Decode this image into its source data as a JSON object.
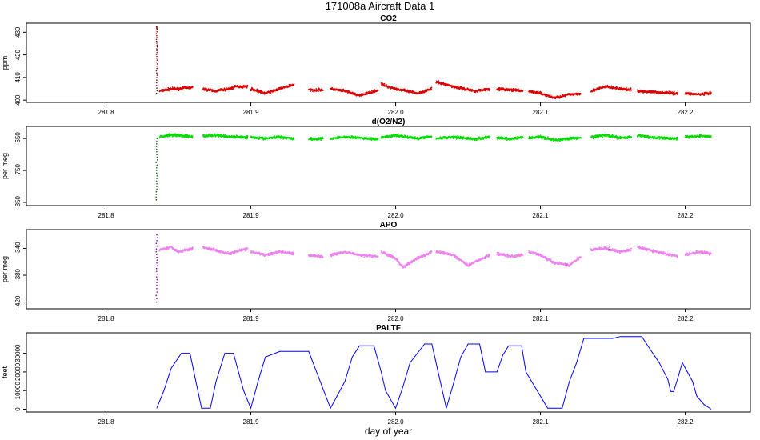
{
  "title": "171008a   Aircraft Data 1",
  "chart_data": [
    {
      "type": "scatter",
      "title": "CO2",
      "ylabel": "ppm",
      "xlabel": "",
      "xlim": [
        281.745,
        282.245
      ],
      "ylim": [
        399,
        434
      ],
      "x_ticks": [
        281.8,
        281.9,
        282.0,
        282.1,
        282.2
      ],
      "x_tick_labels": [
        "281.8",
        "281.9",
        "282.0",
        "282.1",
        "282.2"
      ],
      "y_ticks": [
        400,
        410,
        420,
        430
      ],
      "y_tick_labels": [
        "400",
        "410",
        "420",
        "430"
      ],
      "colors": [
        "#dd0000",
        "#990000"
      ],
      "spike": {
        "x": 281.835,
        "y_values": [
          403,
          410,
          416,
          421,
          426,
          431,
          433
        ]
      },
      "series": [
        {
          "x": [
            281.837,
            281.845,
            281.85,
            281.855,
            281.86
          ],
          "values": [
            404,
            405,
            405,
            405.5,
            405.5
          ]
        },
        {
          "x": [
            281.867,
            281.875,
            281.885,
            281.89,
            281.898
          ],
          "values": [
            405,
            404,
            405,
            406,
            406
          ]
        },
        {
          "x": [
            281.9,
            281.91,
            281.92,
            281.93
          ],
          "values": [
            405,
            403,
            405,
            407
          ]
        },
        {
          "x": [
            281.94,
            281.95
          ],
          "values": [
            404.5,
            404.5
          ]
        },
        {
          "x": [
            281.955,
            281.965,
            281.975,
            281.988
          ],
          "values": [
            405,
            404,
            402,
            404.5
          ]
        },
        {
          "x": [
            281.99,
            282.0,
            282.015,
            282.025
          ],
          "values": [
            407,
            405,
            403,
            405
          ]
        },
        {
          "x": [
            282.028,
            282.04,
            282.055,
            282.065
          ],
          "values": [
            408,
            406,
            404,
            405
          ]
        },
        {
          "x": [
            282.07,
            282.08,
            282.088
          ],
          "values": [
            405,
            404.5,
            404
          ]
        },
        {
          "x": [
            282.092,
            282.1,
            282.11,
            282.12,
            282.128
          ],
          "values": [
            404,
            403,
            401,
            402.5,
            403
          ]
        },
        {
          "x": [
            282.135,
            282.145,
            282.155,
            282.163
          ],
          "values": [
            404,
            406,
            405,
            404.5
          ]
        },
        {
          "x": [
            282.167,
            282.18,
            282.195
          ],
          "values": [
            404,
            403.5,
            403
          ]
        },
        {
          "x": [
            282.2,
            282.21,
            282.218
          ],
          "values": [
            403,
            402.5,
            403
          ]
        }
      ]
    },
    {
      "type": "scatter",
      "title": "d(O2/N2)",
      "ylabel": "per meg",
      "xlabel": "",
      "xlim": [
        281.745,
        282.245
      ],
      "ylim": [
        -860,
        -612
      ],
      "x_ticks": [
        281.8,
        281.9,
        282.0,
        282.1,
        282.2
      ],
      "x_tick_labels": [
        "281.8",
        "281.9",
        "282.0",
        "282.1",
        "282.2"
      ],
      "y_ticks": [
        -850,
        -750,
        -650
      ],
      "y_tick_labels": [
        "-850",
        "-750",
        "-650"
      ],
      "colors": [
        "#00dd00",
        "#006600"
      ],
      "spike": {
        "x": 281.835,
        "y_values": [
          -650,
          -700,
          -750,
          -800,
          -850
        ]
      },
      "series": [
        {
          "x": [
            281.837,
            281.845,
            281.85,
            281.86
          ],
          "values": [
            -645,
            -638,
            -640,
            -645
          ]
        },
        {
          "x": [
            281.867,
            281.875,
            281.885,
            281.898
          ],
          "values": [
            -642,
            -640,
            -644,
            -646
          ]
        },
        {
          "x": [
            281.9,
            281.91,
            281.92,
            281.93
          ],
          "values": [
            -645,
            -650,
            -645,
            -650
          ]
        },
        {
          "x": [
            281.94,
            281.95
          ],
          "values": [
            -652,
            -650
          ]
        },
        {
          "x": [
            281.955,
            281.965,
            281.975,
            281.988
          ],
          "values": [
            -650,
            -645,
            -648,
            -652
          ]
        },
        {
          "x": [
            281.99,
            282.0,
            282.015,
            282.025
          ],
          "values": [
            -648,
            -640,
            -650,
            -642
          ]
        },
        {
          "x": [
            282.028,
            282.04,
            282.055,
            282.065
          ],
          "values": [
            -650,
            -645,
            -652,
            -645
          ]
        },
        {
          "x": [
            282.07,
            282.08,
            282.088
          ],
          "values": [
            -648,
            -652,
            -645
          ]
        },
        {
          "x": [
            282.092,
            282.1,
            282.11,
            282.12,
            282.128
          ],
          "values": [
            -648,
            -645,
            -655,
            -650,
            -648
          ]
        },
        {
          "x": [
            282.135,
            282.145,
            282.155,
            282.163
          ],
          "values": [
            -645,
            -640,
            -648,
            -645
          ]
        },
        {
          "x": [
            282.167,
            282.18,
            282.195
          ],
          "values": [
            -640,
            -648,
            -650
          ]
        },
        {
          "x": [
            282.2,
            282.21,
            282.218
          ],
          "values": [
            -645,
            -642,
            -645
          ]
        }
      ]
    },
    {
      "type": "scatter",
      "title": "APO",
      "ylabel": "per meg",
      "xlabel": "",
      "xlim": [
        281.745,
        282.245
      ],
      "ylim": [
        -430,
        -312
      ],
      "x_ticks": [
        281.8,
        281.9,
        282.0,
        282.1,
        282.2
      ],
      "x_tick_labels": [
        "281.8",
        "281.9",
        "282.0",
        "282.1",
        "282.2"
      ],
      "y_ticks": [
        -420,
        -380,
        -340
      ],
      "y_tick_labels": [
        "-420",
        "-380",
        "-340"
      ],
      "colors": [
        "#ee82ee",
        "#9400d3"
      ],
      "spike": {
        "x": 281.835,
        "y_values": [
          -320,
          -345,
          -370,
          -395,
          -425
        ]
      },
      "series": [
        {
          "x": [
            281.837,
            281.845,
            281.85,
            281.86
          ],
          "values": [
            -342,
            -338,
            -345,
            -340
          ]
        },
        {
          "x": [
            281.867,
            281.875,
            281.885,
            281.898
          ],
          "values": [
            -338,
            -342,
            -348,
            -340
          ]
        },
        {
          "x": [
            281.9,
            281.91,
            281.92,
            281.93
          ],
          "values": [
            -345,
            -350,
            -345,
            -348
          ]
        },
        {
          "x": [
            281.94,
            281.95
          ],
          "values": [
            -350,
            -352
          ]
        },
        {
          "x": [
            281.955,
            281.965,
            281.975,
            281.988
          ],
          "values": [
            -350,
            -345,
            -350,
            -352
          ]
        },
        {
          "x": [
            281.99,
            282.0,
            282.005,
            282.015,
            282.025
          ],
          "values": [
            -345,
            -355,
            -368,
            -355,
            -345
          ]
        },
        {
          "x": [
            282.028,
            282.04,
            282.05,
            282.065
          ],
          "values": [
            -345,
            -350,
            -365,
            -350
          ]
        },
        {
          "x": [
            282.07,
            282.08,
            282.088
          ],
          "values": [
            -348,
            -352,
            -350
          ]
        },
        {
          "x": [
            282.092,
            282.1,
            282.11,
            282.12,
            282.128
          ],
          "values": [
            -345,
            -350,
            -362,
            -365,
            -352
          ]
        },
        {
          "x": [
            282.135,
            282.145,
            282.155,
            282.163
          ],
          "values": [
            -342,
            -340,
            -345,
            -342
          ]
        },
        {
          "x": [
            282.167,
            282.18,
            282.195
          ],
          "values": [
            -338,
            -345,
            -352
          ]
        },
        {
          "x": [
            282.2,
            282.21,
            282.218
          ],
          "values": [
            -350,
            -345,
            -348
          ]
        }
      ]
    },
    {
      "type": "line",
      "title": "PALTF",
      "ylabel": "feet",
      "xlabel": "day of year",
      "xlim": [
        281.745,
        282.245
      ],
      "ylim": [
        -1500,
        41000
      ],
      "x_ticks": [
        281.8,
        281.9,
        282.0,
        282.1,
        282.2
      ],
      "x_tick_labels": [
        "281.8",
        "281.9",
        "282.0",
        "282.1",
        "282.2"
      ],
      "y_ticks": [
        0,
        10000,
        20000,
        30000
      ],
      "y_tick_labels": [
        "0",
        "10000",
        "20000",
        "30000"
      ],
      "colors": [
        "#0000ff"
      ],
      "series": [
        {
          "x": [
            281.835,
            281.84,
            281.845,
            281.852,
            281.858,
            281.862,
            281.866,
            281.872,
            281.876,
            281.882,
            281.888,
            281.895,
            281.9,
            281.905,
            281.91,
            281.92,
            281.93,
            281.935,
            281.94,
            281.955,
            281.965,
            281.97,
            281.975,
            281.985,
            281.99,
            281.993,
            282.0,
            282.005,
            282.01,
            282.02,
            282.025,
            282.035,
            282.04,
            282.045,
            282.05,
            282.058,
            282.062,
            282.07,
            282.074,
            282.078,
            282.082,
            282.087,
            282.09,
            282.105,
            282.11,
            282.115,
            282.12,
            282.125,
            282.13,
            282.15,
            282.155,
            282.17,
            282.175,
            282.182,
            282.188,
            282.19,
            282.192,
            282.195,
            282.198,
            282.205,
            282.208,
            282.213,
            282.218
          ],
          "values": [
            500,
            10000,
            22000,
            30000,
            30000,
            15000,
            500,
            500,
            15000,
            30000,
            30000,
            10000,
            500,
            15000,
            28000,
            31000,
            31000,
            31000,
            31000,
            500,
            15000,
            28000,
            34000,
            34000,
            20000,
            10000,
            500,
            12000,
            25000,
            35000,
            35000,
            500,
            14000,
            28000,
            35000,
            35000,
            20000,
            20000,
            29000,
            34000,
            34000,
            34000,
            20000,
            500,
            500,
            500,
            15000,
            25000,
            38000,
            38000,
            39000,
            39000,
            33000,
            25000,
            16000,
            9500,
            9500,
            17000,
            25000,
            15000,
            7000,
            2500,
            0
          ]
        }
      ]
    }
  ]
}
